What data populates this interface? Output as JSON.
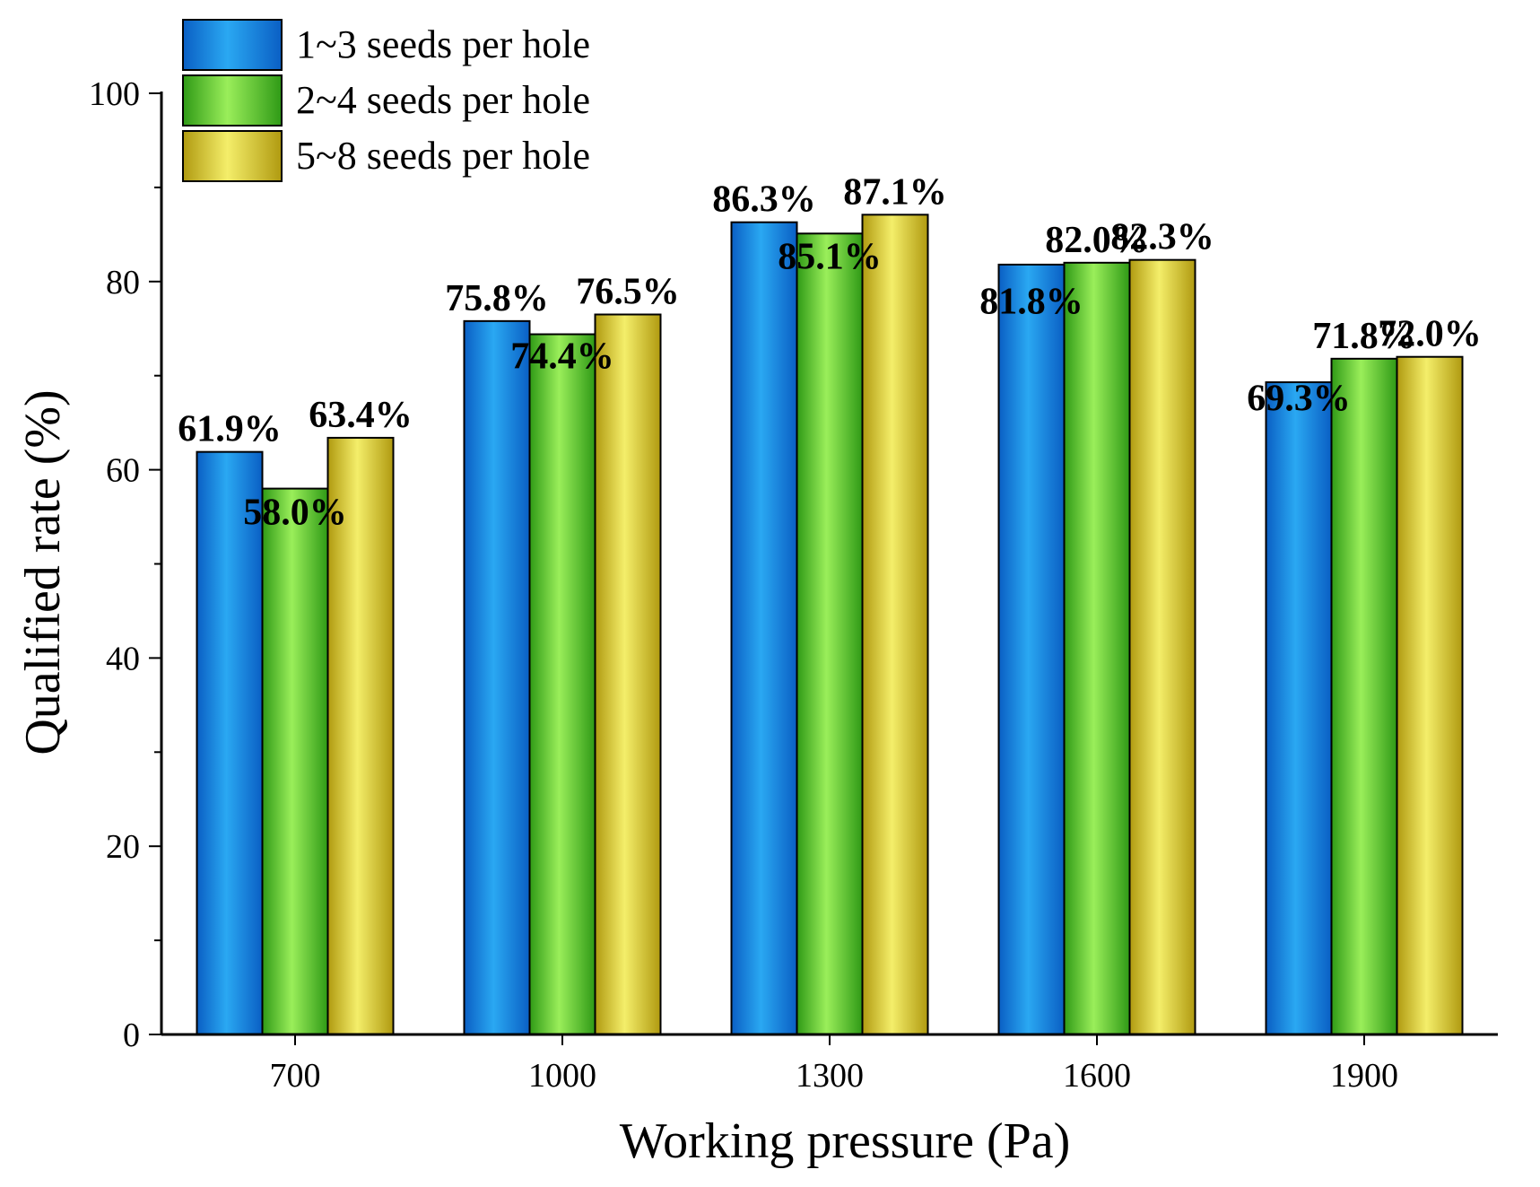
{
  "chart_data": {
    "type": "bar",
    "title": "",
    "xlabel": "Working pressure (Pa)",
    "ylabel": "Qualified rate (%)",
    "categories": [
      "700",
      "1000",
      "1300",
      "1600",
      "1900"
    ],
    "ylim": [
      0,
      100
    ],
    "yticks": [
      "0",
      "20",
      "40",
      "60",
      "80",
      "100"
    ],
    "legend_position": "top-left",
    "series": [
      {
        "name": "1~3 seeds per hole",
        "values": [
          61.9,
          75.8,
          86.3,
          81.8,
          69.3
        ],
        "labels": [
          "61.9%",
          "75.8%",
          "86.3%",
          "81.8%",
          "69.3%"
        ],
        "color_light": "#2aa8f2",
        "color_dark": "#0a5fc4"
      },
      {
        "name": "2~4 seeds per hole",
        "values": [
          58.0,
          74.4,
          85.1,
          82.0,
          71.8
        ],
        "labels": [
          "58.0%",
          "74.4%",
          "85.1%",
          "82.0%",
          "71.8%"
        ],
        "color_light": "#9aee5a",
        "color_dark": "#2f9a16"
      },
      {
        "name": "5~8 seeds per hole",
        "values": [
          63.4,
          76.5,
          87.1,
          82.3,
          72.0
        ],
        "labels": [
          "63.4%",
          "76.5%",
          "87.1%",
          "82.3%",
          "72.0%"
        ],
        "color_light": "#f4ee6a",
        "color_dark": "#b09a10"
      }
    ]
  }
}
